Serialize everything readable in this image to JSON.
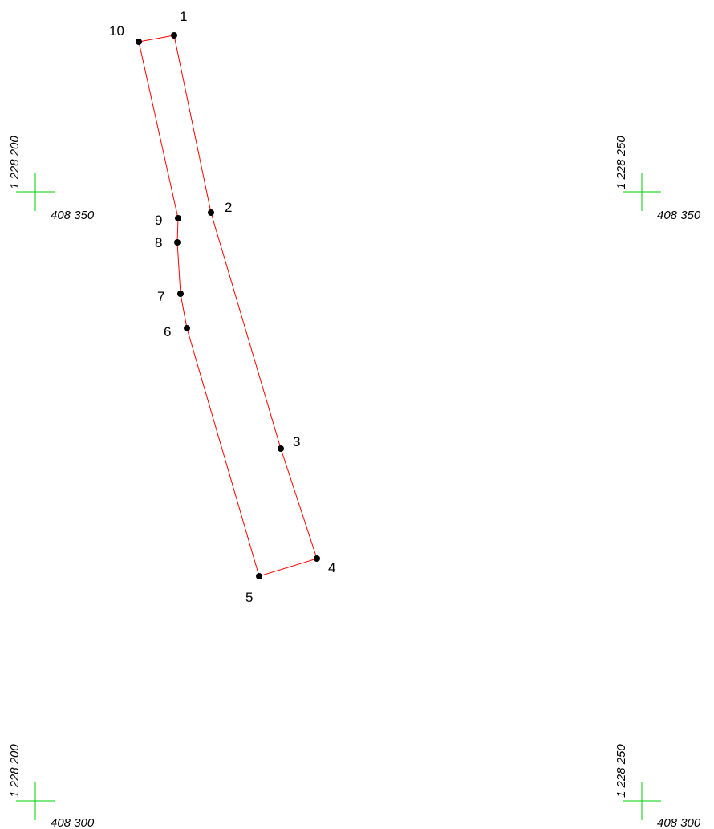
{
  "colors": {
    "boundary": "#ff0000",
    "grid_cross": "#00cc00",
    "vertex": "#000000",
    "background": "#ffffff"
  },
  "grid_crosses": [
    {
      "x_label": "408 350",
      "y_label": "1 228 200"
    },
    {
      "x_label": "408 350",
      "y_label": "1 228 250"
    },
    {
      "x_label": "408 300",
      "y_label": "1 228 200"
    },
    {
      "x_label": "408 300",
      "y_label": "1 228 250"
    }
  ],
  "parcel": {
    "vertices": [
      {
        "label": "1"
      },
      {
        "label": "2"
      },
      {
        "label": "3"
      },
      {
        "label": "4"
      },
      {
        "label": "5"
      },
      {
        "label": "6"
      },
      {
        "label": "7"
      },
      {
        "label": "8"
      },
      {
        "label": "9"
      },
      {
        "label": "10"
      }
    ]
  }
}
